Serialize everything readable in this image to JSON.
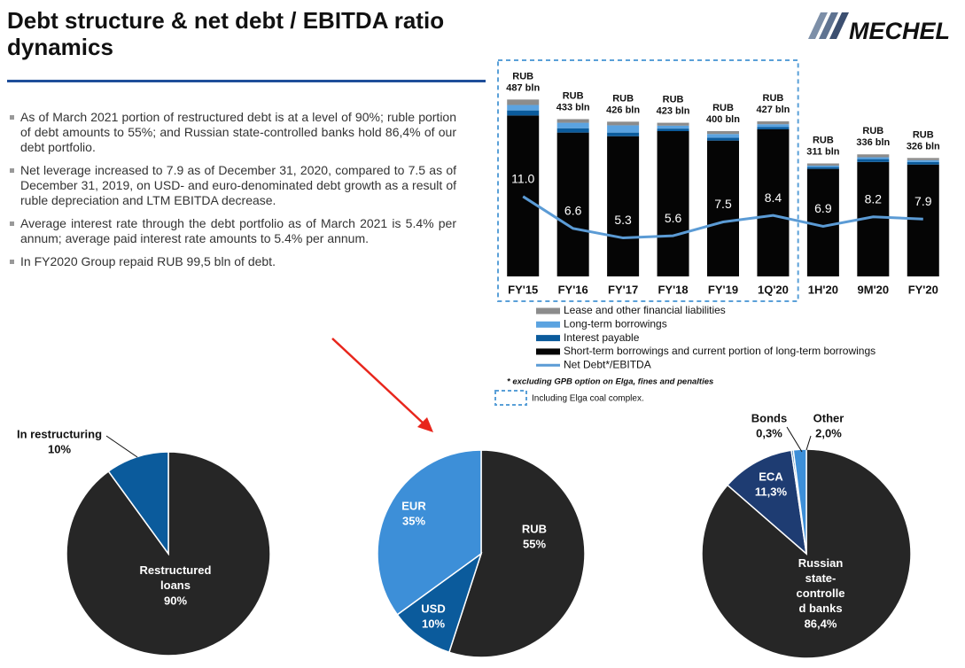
{
  "title": "Debt structure & net debt / EBITDA ratio dynamics",
  "logo": "MECHEL",
  "bullets": [
    "As of March 2021 portion of restructured debt is at a level of 90%; ruble portion of debt amounts to 55%; and Russian state-controlled banks hold 86,4% of our debt portfolio.",
    "Net leverage increased to 7.9 as of December 31, 2020, compared to 7.5 as of December 31, 2019, on USD- and euro-denominated debt growth as a result of ruble depreciation and LTM EBITDA decrease.",
    "Average interest rate through the debt portfolio as of March 2021 is 5.4% per annum; average paid interest rate amounts to 5.4% per annum.",
    "In FY2020 Group repaid RUB 99,5 bln of debt."
  ],
  "chart_data": [
    {
      "type": "bar",
      "stacked": true,
      "categories": [
        "FY'15",
        "FY'16",
        "FY'17",
        "FY'18",
        "FY'19",
        "1Q'20",
        "1H'20",
        "9M'20",
        "FY'20"
      ],
      "total_labels": [
        "RUB\n487 bln",
        "RUB\n433 bln",
        "RUB\n426 bln",
        "RUB\n423 bln",
        "RUB\n400 bln",
        "RUB\n427 bln",
        "RUB\n311 bln",
        "RUB\n336 bln",
        "RUB\n326 bln"
      ],
      "series": [
        {
          "name": "Lease and other financial liabilities",
          "color": "#8c8c8c",
          "values": [
            15,
            10,
            10,
            8,
            8,
            8,
            6,
            8,
            6
          ]
        },
        {
          "name": "Long-term borrowings",
          "color": "#5ba3e0",
          "values": [
            15,
            15,
            20,
            8,
            10,
            8,
            4,
            5,
            5
          ]
        },
        {
          "name": "Interest payable",
          "color": "#0b5b9c",
          "values": [
            14,
            12,
            10,
            7,
            8,
            6,
            5,
            8,
            7
          ]
        },
        {
          "name": "Short-term borrowings and current portion of long-term borrowings",
          "color": "#050505",
          "values": [
            443,
            396,
            386,
            400,
            374,
            405,
            296,
            315,
            308
          ]
        },
        {
          "name": "Net Debt*/EBITDA",
          "type": "line",
          "axis": "y2",
          "color": "#5b9bd5",
          "values": [
            11.0,
            6.6,
            5.3,
            5.6,
            7.5,
            8.4,
            6.9,
            8.2,
            7.9
          ],
          "value_labels": [
            "11.0",
            "6.6",
            "5.3",
            "5.6",
            "7.5",
            "8.4",
            "6.9",
            "8.2",
            "7.9"
          ]
        }
      ],
      "ylim": [
        0,
        500
      ],
      "y2lim": [
        0,
        25
      ],
      "footnote": "* excluding GPB option on Elga, fines and penalties",
      "highlight": {
        "label": "Including Elga coal complex.",
        "count": 6
      }
    },
    {
      "type": "pie",
      "categories": [
        "Restructured\nloans",
        "In restructuring"
      ],
      "values": [
        90,
        10
      ],
      "value_labels": [
        "90%",
        "10%"
      ],
      "colors": [
        "#262626",
        "#0b5b9c"
      ]
    },
    {
      "type": "pie",
      "categories": [
        "RUB",
        "USD",
        "EUR"
      ],
      "values": [
        55,
        10,
        35
      ],
      "value_labels": [
        "55%",
        "10%",
        "35%"
      ],
      "colors": [
        "#262626",
        "#0b5b9c",
        "#3d8fd8"
      ]
    },
    {
      "type": "pie",
      "categories": [
        "Russian\nstate-\ncontrolle\nd banks",
        "ECA",
        "Bonds",
        "Other"
      ],
      "values": [
        86.4,
        11.3,
        0.3,
        2.0
      ],
      "value_labels": [
        "86,4%",
        "11,3%",
        "0,3%",
        "2,0%"
      ],
      "colors": [
        "#262626",
        "#1e3c72",
        "#0b5b9c",
        "#3d8fd8"
      ]
    }
  ]
}
